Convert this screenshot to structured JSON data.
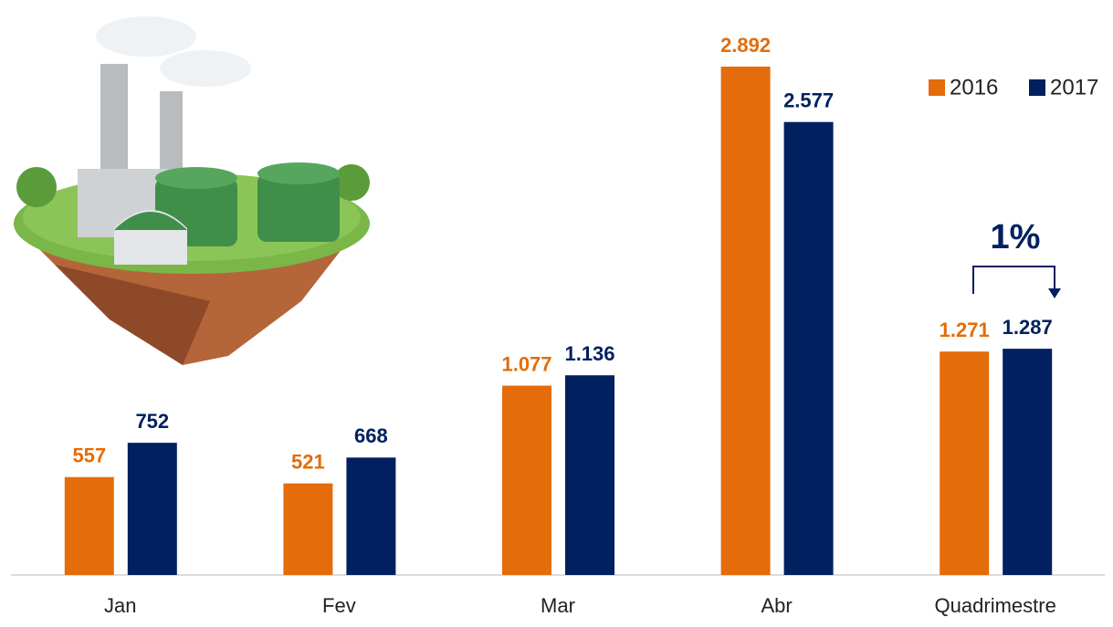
{
  "chart_data": {
    "type": "bar",
    "categories": [
      "Jan",
      "Fev",
      "Mar",
      "Abr",
      "Quadrimestre"
    ],
    "series": [
      {
        "name": "2016",
        "color": "#E46C0A",
        "values": [
          557,
          521,
          1077,
          2892,
          1271
        ],
        "value_labels": [
          "557",
          "521",
          "1.077",
          "2.892",
          "1.271"
        ]
      },
      {
        "name": "2017",
        "color": "#002060",
        "values": [
          752,
          668,
          1136,
          2577,
          1287
        ],
        "value_labels": [
          "752",
          "668",
          "1.136",
          "2.577",
          "1.287"
        ]
      }
    ],
    "annotation": "1%",
    "legend": "top-right"
  }
}
